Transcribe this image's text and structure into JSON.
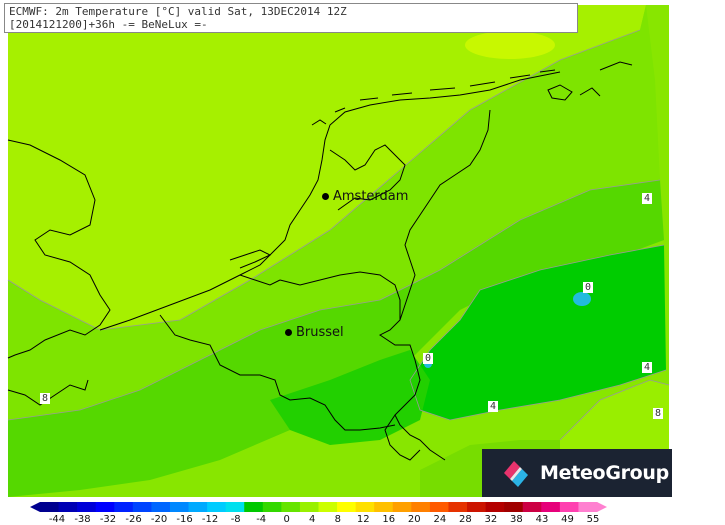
{
  "header": {
    "line1": "ECMWF: 2m Temperature [°C] valid Sat, 13DEC2014 12Z",
    "line2": "[2014121200]+36h -= BeNeLux =-"
  },
  "cities": [
    {
      "id": "amsterdam",
      "name": "Amsterdam"
    },
    {
      "id": "brussel",
      "name": "Brussel"
    }
  ],
  "contour_labels": [
    "4",
    "0",
    "0",
    "4",
    "4",
    "8",
    "8"
  ],
  "brand": {
    "name": "MeteoGroup"
  },
  "colorbar": {
    "tick_labels": [
      "-44",
      "-38",
      "-32",
      "-26",
      "-20",
      "-16",
      "-12",
      "-8",
      "-4",
      "0",
      "4",
      "8",
      "12",
      "16",
      "20",
      "24",
      "28",
      "32",
      "38",
      "43",
      "49",
      "55"
    ],
    "colors": [
      "#00008f",
      "#0000b4",
      "#0000d8",
      "#0000ff",
      "#0022ff",
      "#0044ff",
      "#0066ff",
      "#0088ff",
      "#00aaff",
      "#00ccff",
      "#00e0ee",
      "#00c800",
      "#33d800",
      "#66e400",
      "#99f000",
      "#ccff00",
      "#ffff00",
      "#ffe000",
      "#ffc000",
      "#ffa000",
      "#ff8000",
      "#ff5a00",
      "#e63200",
      "#cc1400",
      "#b40000",
      "#a00000",
      "#cc0044",
      "#e6007a",
      "#ff40b0",
      "#ff80d0"
    ]
  },
  "colors": {
    "land_warm": "#99ee00",
    "land_mid": "#77dd00",
    "land_cool": "#33cc00",
    "land_cold": "#00cc00",
    "cold_spot": "#22bbdd",
    "sea": "#aaee44",
    "brand_bg": "#1b2332"
  }
}
